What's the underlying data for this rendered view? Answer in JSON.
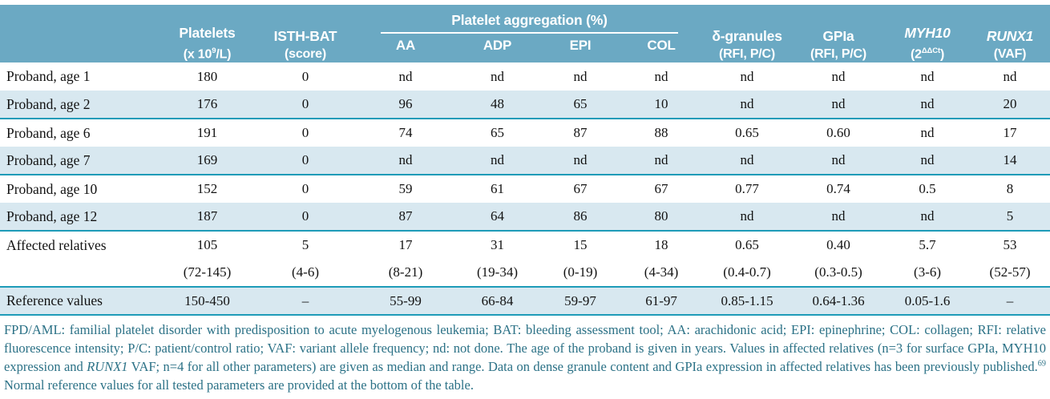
{
  "colors": {
    "header_bg": "#6BA9C3",
    "row_stripe": "#D8E8F0",
    "rule_teal": "#1E9BB8",
    "footnote_text": "#2B7186"
  },
  "header": {
    "platelets": {
      "line1": "Platelets",
      "unit_pre": "(x 10",
      "unit_sup": "9",
      "unit_post": "/L)"
    },
    "isth": {
      "line1": "ISTH-BAT",
      "line2": "(score)"
    },
    "aggregation": {
      "group": "Platelet aggregation (%)",
      "subs": [
        "AA",
        "ADP",
        "EPI",
        "COL"
      ]
    },
    "granules": {
      "line1": "δ-granules",
      "line2": "(RFI, P/C)"
    },
    "gpia": {
      "line1": "GPIa",
      "line2": "(RFI, P/C)"
    },
    "myh10": {
      "line1": "MYH10",
      "unit_pre": "(2",
      "unit_sup": "ΔΔCt",
      "unit_post": ")"
    },
    "runx1": {
      "line1": "RUNX1",
      "line2": "(VAF)"
    }
  },
  "table": {
    "rows": [
      {
        "label": "Proband, age 1",
        "cells": [
          "180",
          "0",
          "nd",
          "nd",
          "nd",
          "nd",
          "nd",
          "nd",
          "nd",
          "nd"
        ],
        "stripe": false,
        "rule_below": false
      },
      {
        "label": "Proband, age 2",
        "cells": [
          "176",
          "0",
          "96",
          "48",
          "65",
          "10",
          "nd",
          "nd",
          "nd",
          "20"
        ],
        "stripe": true,
        "rule_below": true
      },
      {
        "label": "Proband, age 6",
        "cells": [
          "191",
          "0",
          "74",
          "65",
          "87",
          "88",
          "0.65",
          "0.60",
          "nd",
          "17"
        ],
        "stripe": false,
        "rule_below": false
      },
      {
        "label": "Proband, age 7",
        "cells": [
          "169",
          "0",
          "nd",
          "nd",
          "nd",
          "nd",
          "nd",
          "nd",
          "nd",
          "14"
        ],
        "stripe": true,
        "rule_below": true
      },
      {
        "label": "Proband, age 10",
        "cells": [
          "152",
          "0",
          "59",
          "61",
          "67",
          "67",
          "0.77",
          "0.74",
          "0.5",
          "8"
        ],
        "stripe": false,
        "rule_below": false
      },
      {
        "label": "Proband, age 12",
        "cells": [
          "187",
          "0",
          "87",
          "64",
          "86",
          "80",
          "nd",
          "nd",
          "nd",
          "5"
        ],
        "stripe": true,
        "rule_below": true
      },
      {
        "label": "Affected relatives",
        "cells": [
          "105",
          "5",
          "17",
          "31",
          "15",
          "18",
          "0.65",
          "0.40",
          "5.7",
          "53"
        ],
        "stripe": false,
        "rule_below": false
      },
      {
        "label": "",
        "cells": [
          "(72-145)",
          "(4-6)",
          "(8-21)",
          "(19-34)",
          "(0-19)",
          "(4-34)",
          "(0.4-0.7)",
          "(0.3-0.5)",
          "(3-6)",
          "(52-57)"
        ],
        "stripe": false,
        "rule_below": true
      },
      {
        "label": "Reference values",
        "cells": [
          "150-450",
          "–",
          "55-99",
          "66-84",
          "59-97",
          "61-97",
          "0.85-1.15",
          "0.64-1.36",
          "0.05-1.6",
          "–"
        ],
        "stripe": true,
        "rule_below": true
      }
    ]
  },
  "footnote": {
    "segments": [
      {
        "t": "FPD/AML: familial platelet disorder with predisposition to acute myelogenous leukemia; BAT: bleeding assessment tool; AA: arachidonic acid; EPI: epinephrine; COL: collagen; RFI: relative fluorescence intensity; P/C: patient/control ratio; VAF: variant allele frequency; nd: not done. The age of the proband is given in years. Values in affected relatives (n=3 for surface GPIa, MYH10 expression and "
      },
      {
        "t": "RUNX1",
        "i": true
      },
      {
        "t": " VAF; n=4 for all other parameters) are given as median and range. Data on dense granule content and GPIa expression in affected relatives has been previously published."
      },
      {
        "t": "69",
        "sup": true
      },
      {
        "t": " Normal reference values for all tested parameters are provided at the bottom of the table."
      }
    ]
  }
}
